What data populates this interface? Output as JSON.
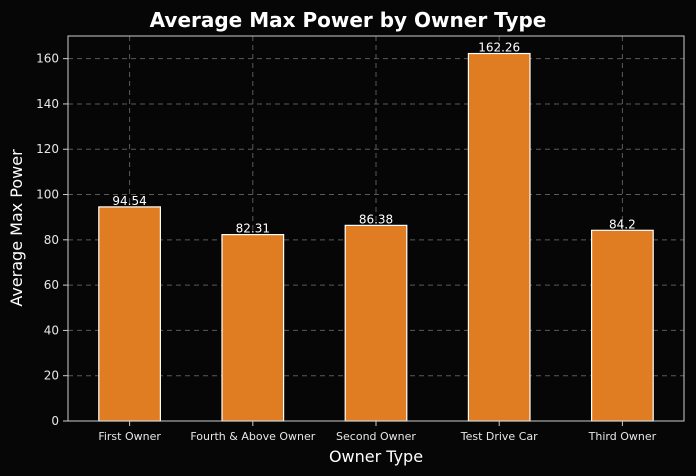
{
  "chart_data": {
    "type": "bar",
    "title": "Average Max Power by Owner Type",
    "xlabel": "Owner Type",
    "ylabel": "Average Max Power",
    "categories": [
      "First Owner",
      "Fourth & Above Owner",
      "Second Owner",
      "Test Drive Car",
      "Third Owner"
    ],
    "values": [
      94.54,
      82.31,
      86.38,
      162.26,
      84.2
    ],
    "data_labels": [
      "94.54",
      "82.31",
      "86.38",
      "162.26",
      "84.2"
    ],
    "ylim": [
      0,
      170
    ],
    "yticks": [
      0,
      20,
      40,
      60,
      80,
      100,
      120,
      140,
      160
    ],
    "grid": true,
    "colors": {
      "background": "#060606",
      "bar_fill": "#e07d22",
      "bar_edge": "#ffffff",
      "grid": "#5a5a5a",
      "axis": "#cccccc"
    }
  }
}
